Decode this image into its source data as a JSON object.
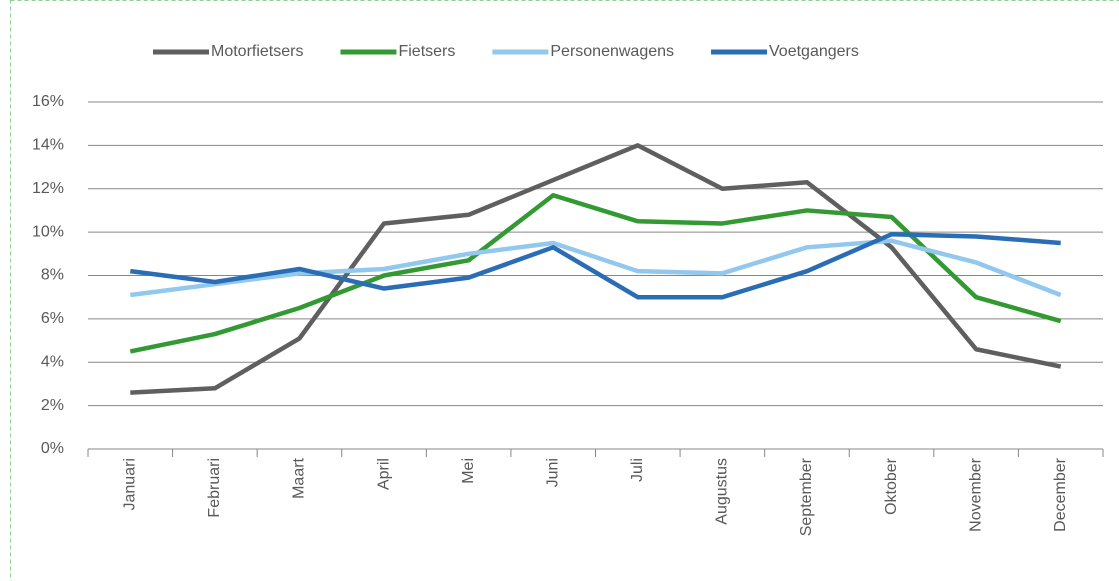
{
  "chart_data": {
    "type": "line",
    "categories": [
      "Januari",
      "Februari",
      "Maart",
      "April",
      "Mei",
      "Juni",
      "Juli",
      "Augustus",
      "September",
      "Oktober",
      "November",
      "December"
    ],
    "series": [
      {
        "name": "Motorfietsers",
        "color": "#5f5f5f",
        "values": [
          2.6,
          2.8,
          5.1,
          10.4,
          10.8,
          12.4,
          14.0,
          12.0,
          12.3,
          9.3,
          4.6,
          3.8
        ]
      },
      {
        "name": "Fietsers",
        "color": "#339933",
        "values": [
          4.5,
          5.3,
          6.5,
          8.0,
          8.7,
          11.7,
          10.5,
          10.4,
          11.0,
          10.7,
          7.0,
          5.9
        ]
      },
      {
        "name": "Personenwagens",
        "color": "#92c8ee",
        "values": [
          7.1,
          7.6,
          8.1,
          8.3,
          9.0,
          9.5,
          8.2,
          8.1,
          9.3,
          9.6,
          8.6,
          7.1
        ]
      },
      {
        "name": "Voetgangers",
        "color": "#2a6db4",
        "values": [
          8.2,
          7.7,
          8.3,
          7.4,
          7.9,
          9.3,
          7.0,
          7.0,
          8.2,
          9.9,
          9.8,
          9.5
        ]
      }
    ],
    "ylim": [
      0,
      16
    ],
    "yticks": [
      {
        "value": 0,
        "label": "0%"
      },
      {
        "value": 2,
        "label": "2%"
      },
      {
        "value": 4,
        "label": "4%"
      },
      {
        "value": 6,
        "label": "6%"
      },
      {
        "value": 8,
        "label": "8%"
      },
      {
        "value": 10,
        "label": "10%"
      },
      {
        "value": 12,
        "label": "12%"
      },
      {
        "value": 14,
        "label": "14%"
      },
      {
        "value": 16,
        "label": "16%"
      }
    ],
    "grid": true,
    "legend": "top"
  }
}
